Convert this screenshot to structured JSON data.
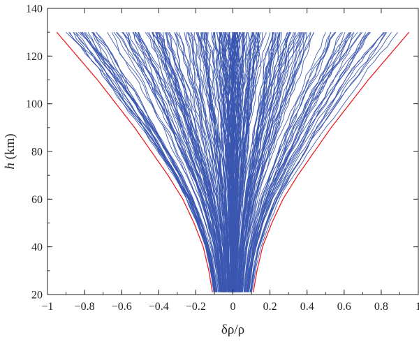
{
  "chart_data": {
    "type": "line",
    "xlabel": "δρ/ρ",
    "ylabel_italic": "h",
    "ylabel_unit": " (km)",
    "xlim": [
      -1,
      1
    ],
    "ylim": [
      20,
      140
    ],
    "x_ticks": [
      -1,
      -0.8,
      -0.6,
      -0.4,
      -0.2,
      0,
      0.2,
      0.4,
      0.6,
      0.8,
      1
    ],
    "x_tick_labels": [
      "−1",
      "−0.8",
      "−0.6",
      "−0.4",
      "−0.2",
      "0",
      "0.2",
      "0.4",
      "0.6",
      "0.8",
      "1"
    ],
    "y_ticks": [
      20,
      40,
      60,
      80,
      100,
      120,
      140
    ],
    "y_tick_labels": [
      "20",
      "40",
      "60",
      "80",
      "100",
      "120",
      "140"
    ],
    "grid": false,
    "envelope": {
      "color": "#e8202a",
      "description_points": [
        {
          "h": 21,
          "dx": 0.11
        },
        {
          "h": 30,
          "dx": 0.13
        },
        {
          "h": 40,
          "dx": 0.16
        },
        {
          "h": 50,
          "dx": 0.21
        },
        {
          "h": 60,
          "dx": 0.27
        },
        {
          "h": 70,
          "dx": 0.35
        },
        {
          "h": 80,
          "dx": 0.44
        },
        {
          "h": 90,
          "dx": 0.53
        },
        {
          "h": 100,
          "dx": 0.63
        },
        {
          "h": 110,
          "dx": 0.73
        },
        {
          "h": 120,
          "dx": 0.84
        },
        {
          "h": 130,
          "dx": 0.95
        }
      ]
    },
    "ensemble": {
      "color": "#3a56b0",
      "h_start": 21,
      "h_end": 130
    }
  }
}
